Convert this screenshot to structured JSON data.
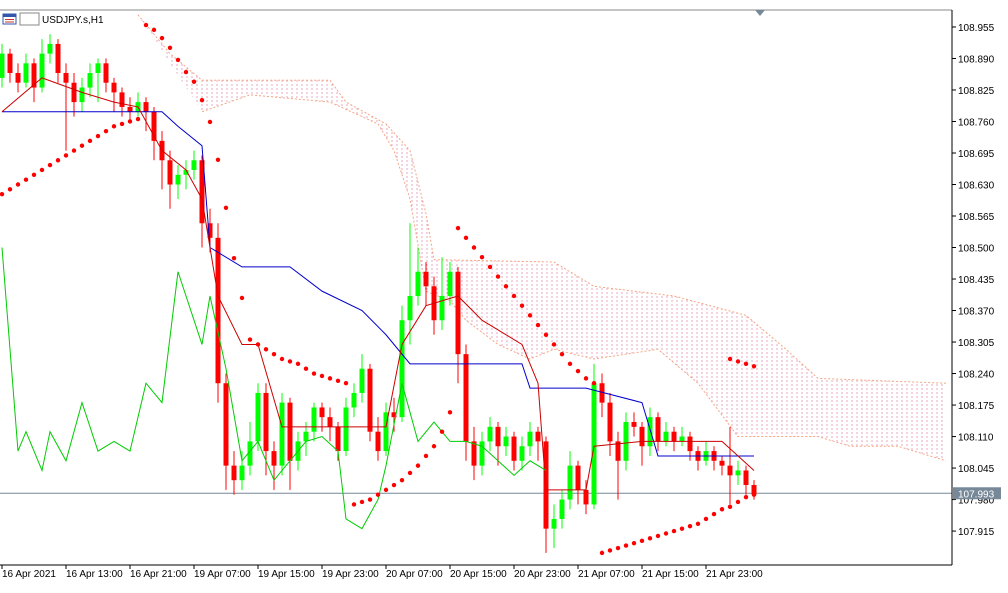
{
  "chart_data": {
    "type": "candlestick",
    "title": "USDJPY.s,H1",
    "ylim": [
      107.845,
      108.99
    ],
    "xlim": [
      -0.25,
      118.75
    ],
    "yticks": [
      108.955,
      {
        "value": 108.89,
        "label": "108.890"
      },
      108.825,
      {
        "value": 108.76,
        "label": "108.760"
      },
      108.695,
      {
        "value": 108.63,
        "label": "108.630"
      },
      108.565,
      {
        "value": 108.5,
        "label": "108.500"
      },
      108.435,
      {
        "value": 108.37,
        "label": "108.370"
      },
      108.305,
      {
        "value": 108.24,
        "label": "108.240"
      },
      108.175,
      {
        "value": 108.11,
        "label": "108.110"
      },
      108.045,
      {
        "value": 107.98,
        "label": "107.980"
      },
      107.915
    ],
    "xticks": [
      {
        "value": 0,
        "label": "16 Apr 2021"
      },
      {
        "value": 8,
        "label": "16 Apr 13:00"
      },
      {
        "value": 16,
        "label": "16 Apr 21:00"
      },
      {
        "value": 24,
        "label": "19 Apr 07:00"
      },
      {
        "value": 32,
        "label": "19 Apr 15:00"
      },
      {
        "value": 40,
        "label": "19 Apr 23:00"
      },
      {
        "value": 48,
        "label": "20 Apr 07:00"
      },
      {
        "value": 56,
        "label": "20 Apr 15:00"
      },
      {
        "value": 64,
        "label": "20 Apr 23:00"
      },
      {
        "value": 72,
        "label": "21 Apr 07:00"
      },
      {
        "value": 80,
        "label": "21 Apr 15:00"
      },
      {
        "value": 88,
        "label": "21 Apr 23:00"
      }
    ],
    "current_price": 107.993,
    "current_price_color": "#778899",
    "candles": {
      "up_color": "#00ff00",
      "down_color": "#ff0000",
      "values": [
        [
          108.85,
          108.92,
          108.83,
          108.9
        ],
        [
          108.9,
          108.91,
          108.84,
          108.86
        ],
        [
          108.86,
          108.88,
          108.82,
          108.84
        ],
        [
          108.84,
          108.9,
          108.83,
          108.88
        ],
        [
          108.88,
          108.89,
          108.8,
          108.83
        ],
        [
          108.83,
          108.93,
          108.82,
          108.9
        ],
        [
          108.9,
          108.94,
          108.88,
          108.92
        ],
        [
          108.92,
          108.93,
          108.84,
          108.86
        ],
        [
          108.86,
          108.88,
          108.7,
          108.84
        ],
        [
          108.84,
          108.86,
          108.77,
          108.8
        ],
        [
          108.8,
          108.85,
          108.78,
          108.83
        ],
        [
          108.83,
          108.88,
          108.81,
          108.86
        ],
        [
          108.86,
          108.89,
          108.8,
          108.88
        ],
        [
          108.88,
          108.89,
          108.82,
          108.84
        ],
        [
          108.84,
          108.85,
          108.78,
          108.82
        ],
        [
          108.82,
          108.83,
          108.77,
          108.79
        ],
        [
          108.79,
          108.81,
          108.76,
          108.78
        ],
        [
          108.78,
          108.82,
          108.77,
          108.8
        ],
        [
          108.8,
          108.81,
          108.74,
          108.78
        ],
        [
          108.78,
          108.79,
          108.68,
          108.72
        ],
        [
          108.72,
          108.74,
          108.62,
          108.68
        ],
        [
          108.68,
          108.7,
          108.58,
          108.63
        ],
        [
          108.63,
          108.67,
          108.6,
          108.65
        ],
        [
          108.65,
          108.68,
          108.62,
          108.66
        ],
        [
          108.66,
          108.7,
          108.64,
          108.68
        ],
        [
          108.68,
          108.69,
          108.5,
          108.55
        ],
        [
          108.55,
          108.58,
          108.49,
          108.52
        ],
        [
          108.52,
          108.55,
          108.18,
          108.22
        ],
        [
          108.22,
          108.24,
          108.0,
          108.05
        ],
        [
          108.05,
          108.08,
          107.99,
          108.02
        ],
        [
          108.02,
          108.08,
          108.0,
          108.05
        ],
        [
          108.05,
          108.14,
          108.03,
          108.1
        ],
        [
          108.1,
          108.22,
          108.08,
          108.2
        ],
        [
          108.2,
          108.22,
          108.03,
          108.08
        ],
        [
          108.08,
          108.1,
          108.0,
          108.05
        ],
        [
          108.05,
          108.2,
          108.03,
          108.18
        ],
        [
          108.18,
          108.19,
          108.0,
          108.06
        ],
        [
          108.06,
          108.12,
          108.04,
          108.1
        ],
        [
          108.1,
          108.14,
          108.07,
          108.12
        ],
        [
          108.12,
          108.18,
          108.1,
          108.17
        ],
        [
          108.17,
          108.18,
          108.12,
          108.15
        ],
        [
          108.15,
          108.17,
          108.1,
          108.13
        ],
        [
          108.13,
          108.14,
          108.06,
          108.08
        ],
        [
          108.08,
          108.19,
          108.07,
          108.17
        ],
        [
          108.17,
          108.22,
          108.15,
          108.2
        ],
        [
          108.2,
          108.28,
          108.18,
          108.25
        ],
        [
          108.25,
          108.26,
          108.1,
          108.12
        ],
        [
          108.12,
          108.15,
          108.06,
          108.08
        ],
        [
          108.08,
          108.18,
          108.07,
          108.16
        ],
        [
          108.16,
          108.19,
          108.12,
          108.15
        ],
        [
          108.15,
          108.38,
          108.14,
          108.35
        ],
        [
          108.35,
          108.55,
          108.3,
          108.4
        ],
        [
          108.4,
          108.5,
          108.38,
          108.45
        ],
        [
          108.45,
          108.47,
          108.38,
          108.42
        ],
        [
          108.42,
          108.44,
          108.32,
          108.35
        ],
        [
          108.35,
          108.48,
          108.33,
          108.4
        ],
        [
          108.4,
          108.47,
          108.38,
          108.45
        ],
        [
          108.45,
          108.46,
          108.22,
          108.28
        ],
        [
          108.28,
          108.3,
          108.06,
          108.1
        ],
        [
          108.1,
          108.13,
          108.02,
          108.05
        ],
        [
          108.05,
          108.12,
          108.03,
          108.1
        ],
        [
          108.1,
          108.15,
          108.08,
          108.13
        ],
        [
          108.13,
          108.14,
          108.05,
          108.09
        ],
        [
          108.09,
          108.13,
          108.07,
          108.11
        ],
        [
          108.11,
          108.12,
          108.04,
          108.06
        ],
        [
          108.06,
          108.11,
          108.04,
          108.09
        ],
        [
          108.09,
          108.14,
          108.07,
          108.12
        ],
        [
          108.12,
          108.13,
          108.06,
          108.1
        ],
        [
          108.1,
          108.11,
          107.87,
          107.92
        ],
        [
          107.92,
          107.97,
          107.88,
          107.94
        ],
        [
          107.94,
          108.0,
          107.92,
          107.98
        ],
        [
          107.98,
          108.08,
          107.96,
          108.05
        ],
        [
          108.05,
          108.06,
          107.97,
          108.0
        ],
        [
          108.0,
          108.02,
          107.95,
          107.97
        ],
        [
          107.97,
          108.26,
          107.96,
          108.22
        ],
        [
          108.22,
          108.24,
          108.15,
          108.18
        ],
        [
          108.18,
          108.2,
          108.07,
          108.1
        ],
        [
          108.1,
          108.12,
          107.98,
          108.06
        ],
        [
          108.06,
          108.16,
          108.04,
          108.14
        ],
        [
          108.14,
          108.16,
          108.11,
          108.13
        ],
        [
          108.13,
          108.14,
          108.05,
          108.09
        ],
        [
          108.09,
          108.17,
          108.07,
          108.15
        ],
        [
          108.15,
          108.16,
          108.08,
          108.1
        ],
        [
          108.1,
          108.14,
          108.09,
          108.12
        ],
        [
          108.12,
          108.13,
          108.08,
          108.1
        ],
        [
          108.1,
          108.13,
          108.09,
          108.11
        ],
        [
          108.11,
          108.12,
          108.06,
          108.08
        ],
        [
          108.08,
          108.09,
          108.04,
          108.06
        ],
        [
          108.06,
          108.1,
          108.05,
          108.08
        ],
        [
          108.08,
          108.09,
          108.04,
          108.06
        ],
        [
          108.06,
          108.07,
          108.03,
          108.05
        ],
        [
          108.05,
          108.13,
          107.97,
          108.03
        ],
        [
          108.03,
          108.06,
          108.01,
          108.04
        ],
        [
          108.04,
          108.05,
          107.99,
          108.01
        ],
        [
          108.01,
          108.02,
          107.98,
          107.99
        ]
      ]
    },
    "cloud": {
      "color": "#f4a582",
      "fill_color": "#e8a8c0",
      "span_a": {
        "x": [
          25,
          31,
          41,
          47,
          49,
          51,
          53,
          56,
          58,
          62,
          66,
          69,
          74,
          82,
          87,
          92,
          102,
          106,
          112,
          118
        ],
        "values": [
          108.78,
          108.815,
          108.8,
          108.755,
          108.7,
          108.6,
          108.41,
          108.39,
          108.35,
          108.3,
          108.27,
          108.29,
          108.27,
          108.29,
          108.22,
          108.11,
          108.11,
          108.09,
          108.09,
          108.06
        ]
      },
      "span_b": {
        "x": [
          17,
          21,
          25,
          41,
          43,
          48,
          51,
          53,
          54,
          69,
          74,
          84,
          93,
          98,
          102,
          118
        ],
        "values": [
          108.98,
          108.9,
          108.845,
          108.845,
          108.8,
          108.755,
          108.7,
          108.57,
          108.475,
          108.47,
          108.42,
          108.4,
          108.36,
          108.29,
          108.23,
          108.22
        ]
      }
    },
    "lines": [
      {
        "color": "#0000cc",
        "x": [
          0,
          20,
          22,
          25,
          26,
          30,
          36,
          40,
          45,
          48,
          51,
          65,
          66,
          73,
          80,
          82,
          94
        ],
        "values": [
          108.78,
          108.78,
          108.75,
          108.71,
          108.5,
          108.46,
          108.46,
          108.41,
          108.37,
          108.32,
          108.26,
          108.26,
          108.21,
          108.21,
          108.18,
          108.07,
          108.07
        ]
      },
      {
        "color": "#cc0000",
        "x": [
          0,
          5,
          10,
          14,
          17,
          20,
          23,
          25,
          27,
          30,
          32,
          35,
          40,
          45,
          48,
          50,
          53,
          57,
          60,
          65,
          67,
          68,
          73,
          74,
          80,
          85,
          90,
          94
        ],
        "values": [
          108.78,
          108.85,
          108.82,
          108.8,
          108.79,
          108.7,
          108.66,
          108.6,
          108.4,
          108.3,
          108.3,
          108.13,
          108.13,
          108.13,
          108.13,
          108.3,
          108.38,
          108.4,
          108.35,
          108.3,
          108.22,
          108.0,
          108.0,
          108.09,
          108.1,
          108.1,
          108.1,
          108.04
        ]
      },
      {
        "color": "#00cc00",
        "x": [
          0,
          2,
          3,
          5,
          6,
          8,
          10,
          12,
          14,
          16,
          18,
          20,
          22,
          23,
          25,
          26,
          28,
          30,
          32,
          34,
          36,
          38,
          40,
          42,
          43,
          45,
          47,
          48,
          50,
          52,
          54,
          56,
          58,
          60,
          62,
          64,
          66,
          68
        ],
        "values": [
          108.5,
          108.08,
          108.12,
          108.04,
          108.12,
          108.06,
          108.18,
          108.08,
          108.1,
          108.08,
          108.22,
          108.18,
          108.45,
          108.4,
          108.3,
          108.4,
          108.25,
          108.06,
          108.1,
          108.02,
          108.06,
          108.1,
          108.11,
          108.08,
          107.94,
          107.92,
          107.98,
          108.05,
          108.22,
          108.1,
          108.14,
          108.1,
          108.1,
          108.09,
          108.06,
          108.03,
          108.06,
          108.04
        ]
      }
    ],
    "sar": {
      "color": "#ff0000",
      "x": [
        0,
        1,
        2,
        3,
        4,
        5,
        6,
        7,
        8,
        9,
        10,
        11,
        12,
        13,
        14,
        15,
        16,
        17,
        18,
        19,
        20,
        21,
        22,
        23,
        24,
        25,
        26,
        27,
        28,
        29,
        30,
        31,
        32,
        33,
        34,
        35,
        36,
        37,
        38,
        39,
        40,
        41,
        42,
        43,
        44,
        45,
        46,
        47,
        48,
        49,
        50,
        51,
        52,
        53,
        54,
        55,
        56,
        57,
        58,
        59,
        60,
        61,
        62,
        63,
        64,
        65,
        66,
        67,
        68,
        69,
        70,
        71,
        72,
        73,
        74,
        75,
        76,
        77,
        78,
        79,
        80,
        81,
        82,
        83,
        84,
        85,
        86,
        87,
        88,
        89,
        90,
        91,
        92,
        93,
        94,
        91,
        92,
        93,
        94
      ],
      "values": [
        108.61,
        108.62,
        108.63,
        108.64,
        108.65,
        108.66,
        108.67,
        108.68,
        108.69,
        108.7,
        108.71,
        108.72,
        108.73,
        108.74,
        108.75,
        108.755,
        108.76,
        108.765,
        108.959,
        108.949,
        108.932,
        108.912,
        108.887,
        108.862,
        108.842,
        108.804,
        108.759,
        108.681,
        108.582,
        108.478,
        108.396,
        108.31,
        108.3,
        108.29,
        108.28,
        108.27,
        108.265,
        108.26,
        108.25,
        108.24,
        108.235,
        108.23,
        108.225,
        108.22,
        107.97,
        107.975,
        107.98,
        107.99,
        108.0,
        108.01,
        108.02,
        108.035,
        108.05,
        108.07,
        108.09,
        108.12,
        108.16,
        108.54,
        108.52,
        108.5,
        108.48,
        108.46,
        108.44,
        108.42,
        108.4,
        108.38,
        108.36,
        108.34,
        108.32,
        108.3,
        108.28,
        108.26,
        108.245,
        108.23,
        108.22,
        107.87,
        107.875,
        107.88,
        107.885,
        107.89,
        107.895,
        107.9,
        107.905,
        107.91,
        107.915,
        107.92,
        107.925,
        107.93,
        107.94,
        107.95,
        107.96,
        107.965,
        107.975,
        107.985,
        107.99,
        108.27,
        108.265,
        108.26,
        108.255
      ]
    }
  }
}
